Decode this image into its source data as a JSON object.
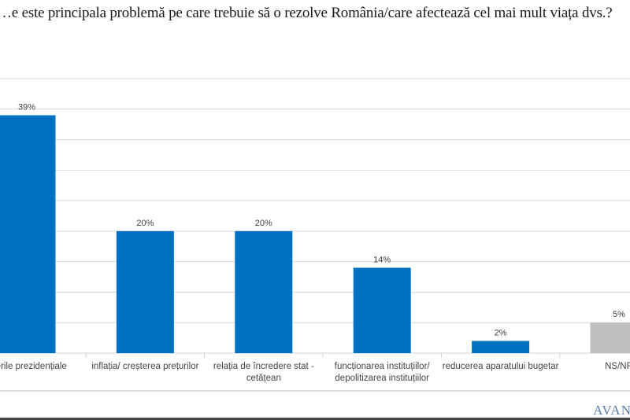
{
  "chart_data": {
    "type": "bar",
    "title": "…e este principala problemă pe care trebuie să o rezolve România/care afectează cel mai mult viața dvs.?",
    "categories": [
      "…erile  prezidențiale",
      "inflația/ creșterea prețurilor",
      "relația de încredere stat - cetățean",
      "funcționarea instituțiilor/ depolitizarea instituțiilor",
      "reducerea aparatului bugetar",
      "NS/NR"
    ],
    "values": [
      39,
      20,
      20,
      14,
      2,
      5
    ],
    "data_labels": [
      "39%",
      "20%",
      "20%",
      "14%",
      "2%",
      "5%"
    ],
    "ylim": [
      0,
      45
    ],
    "grid": true,
    "colors": {
      "main": "#0070c0",
      "ns_nr": "#bfbfbf",
      "grid": "#d9d9d9"
    }
  },
  "logo_text": "AVAN"
}
